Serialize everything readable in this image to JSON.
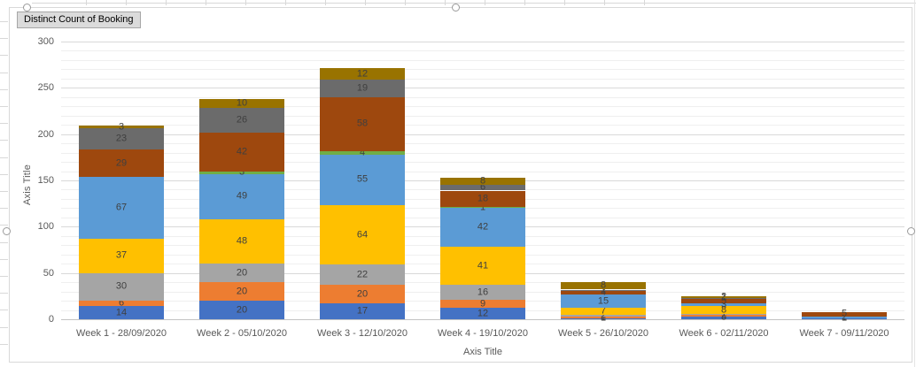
{
  "pivot_field_button": {
    "label": "Distinct Count of Booking"
  },
  "axes": {
    "y_title": "Axis Title",
    "x_title": "Axis Title",
    "y_ticks": [
      "0",
      "50",
      "100",
      "150",
      "200",
      "250",
      "300"
    ]
  },
  "chart_data": {
    "type": "bar",
    "stacked": true,
    "title": "",
    "xlabel": "Axis Title",
    "ylabel": "Axis Title",
    "ylim": [
      0,
      300
    ],
    "y_major_step": 50,
    "y_minor_step": 10,
    "grid": true,
    "legend": "none",
    "data_labels": true,
    "categories": [
      "Week 1 - 28/09/2020",
      "Week 2 - 05/10/2020",
      "Week 3 - 12/10/2020",
      "Week 4 - 19/10/2020",
      "Week 5 - 26/10/2020",
      "Week 6 - 02/11/2020",
      "Week 7 - 09/11/2020"
    ],
    "series": [
      {
        "name": "blue",
        "color": "#4472C4",
        "values": [
          14,
          20,
          17,
          12,
          1,
          3,
          1
        ]
      },
      {
        "name": "orange",
        "color": "#ED7D31",
        "values": [
          6,
          20,
          20,
          9,
          2,
          2,
          0
        ]
      },
      {
        "name": "gray",
        "color": "#A5A5A5",
        "values": [
          30,
          20,
          22,
          16,
          2,
          1,
          0
        ]
      },
      {
        "name": "yellow",
        "color": "#FFC000",
        "values": [
          37,
          48,
          64,
          41,
          7,
          8,
          0
        ]
      },
      {
        "name": "light-blue",
        "color": "#5B9BD5",
        "values": [
          67,
          49,
          55,
          42,
          15,
          3,
          2
        ]
      },
      {
        "name": "green",
        "color": "#70AD47",
        "values": [
          0,
          3,
          4,
          1,
          0,
          0,
          0
        ]
      },
      {
        "name": "brown",
        "color": "#9E480E",
        "values": [
          29,
          42,
          58,
          18,
          4,
          5,
          5
        ]
      },
      {
        "name": "dark-gray",
        "color": "#6B6B6B",
        "values": [
          23,
          26,
          19,
          6,
          1,
          1,
          0
        ]
      },
      {
        "name": "olive",
        "color": "#997300",
        "values": [
          3,
          10,
          12,
          8,
          8,
          2,
          0
        ]
      }
    ]
  }
}
